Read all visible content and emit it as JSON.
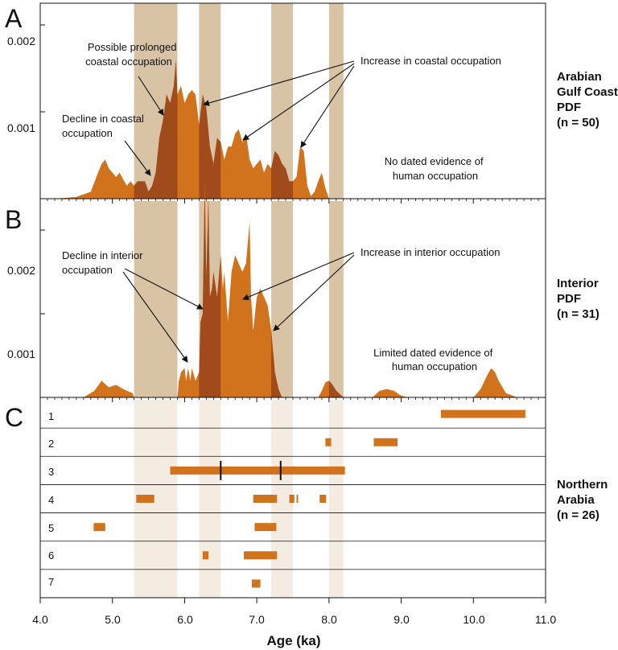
{
  "colors": {
    "orange": "#d1721d",
    "dark_orange": "#a14a1c",
    "band_tan": "#d8c3a5",
    "band_light": "#f4ece0",
    "axis": "#111111"
  },
  "x_axis": {
    "title": "Age (ka)",
    "range": [
      4.0,
      11.0
    ],
    "ticks": [
      "4.0",
      "5.0",
      "6.0",
      "7.0",
      "8.0",
      "9.0",
      "10.0",
      "11.0"
    ]
  },
  "aridity_bands": [
    [
      5.3,
      5.9
    ],
    [
      6.2,
      6.5
    ],
    [
      7.2,
      7.5
    ],
    [
      8.0,
      8.2
    ]
  ],
  "panels": {
    "A": {
      "letter": "A",
      "side_label": [
        "Arabian",
        "Gulf Coast",
        "PDF",
        "(n = 50)"
      ],
      "y_ticks": [
        "0.002",
        "0.001"
      ],
      "annotations": {
        "prolonged": [
          "Possible prolonged",
          "coastal occupation"
        ],
        "decline": [
          "Decline in coastal",
          "occupation"
        ],
        "increase": [
          "Increase in coastal occupation"
        ],
        "no_evidence": [
          "No dated evidence of",
          "human occupation"
        ]
      }
    },
    "B": {
      "letter": "B",
      "side_label": [
        "Interior",
        "PDF",
        "(n = 31)"
      ],
      "y_ticks": [
        "0.002",
        "0.001"
      ],
      "annotations": {
        "decline": [
          "Decline in interior",
          "occupation"
        ],
        "increase": [
          "Increase in interior occupation"
        ],
        "limited": [
          "Limited dated evidence of",
          "human occupation"
        ]
      }
    },
    "C": {
      "letter": "C",
      "side_label": [
        "Northern",
        "Arabia",
        "(n = 26)"
      ],
      "rows": [
        "1",
        "2",
        "3",
        "4",
        "5",
        "6",
        "7"
      ]
    }
  },
  "chart_data": [
    {
      "type": "area",
      "panel": "A",
      "title": "",
      "series_label": "Arabian Gulf Coast PDF (n = 50)",
      "xlabel": "Age (ka)",
      "ylabel": "",
      "xlim": [
        4.0,
        11.0
      ],
      "ylim": [
        0,
        0.0024
      ],
      "x": [
        4.2,
        4.5,
        4.7,
        4.8,
        4.85,
        4.9,
        4.95,
        5.0,
        5.05,
        5.1,
        5.15,
        5.2,
        5.25,
        5.3,
        5.35,
        5.45,
        5.5,
        5.55,
        5.6,
        5.65,
        5.7,
        5.75,
        5.8,
        5.85,
        5.88,
        5.9,
        5.95,
        6.0,
        6.05,
        6.1,
        6.15,
        6.2,
        6.25,
        6.3,
        6.35,
        6.4,
        6.45,
        6.5,
        6.55,
        6.6,
        6.65,
        6.7,
        6.75,
        6.8,
        6.85,
        6.9,
        6.95,
        7.0,
        7.05,
        7.1,
        7.15,
        7.2,
        7.25,
        7.3,
        7.35,
        7.4,
        7.45,
        7.5,
        7.55,
        7.6,
        7.65,
        7.7,
        7.75,
        7.8,
        7.85,
        7.9,
        7.95,
        8.0
      ],
      "y": [
        0.0,
        2e-05,
        8e-05,
        0.0003,
        0.0004,
        0.00045,
        0.00035,
        0.0003,
        0.00025,
        0.0003,
        0.00022,
        0.00015,
        0.0002,
        0.00015,
        0.0002,
        0.0002,
        8e-05,
        0.00015,
        0.0003,
        0.0007,
        0.0009,
        0.0012,
        0.0011,
        0.0013,
        0.0016,
        0.0012,
        0.0013,
        0.0011,
        0.0012,
        0.00125,
        0.0012,
        0.00085,
        0.0012,
        0.00105,
        0.0006,
        0.0004,
        0.0007,
        0.00065,
        0.00045,
        0.0006,
        0.0006,
        0.00075,
        0.0008,
        0.00065,
        0.00075,
        0.00045,
        0.00035,
        0.0004,
        0.00045,
        0.0003,
        0.0004,
        0.00035,
        0.00055,
        0.0005,
        0.0004,
        0.00035,
        0.0002,
        0.0002,
        0.00025,
        0.0006,
        0.00055,
        0.00015,
        3e-05,
        8e-05,
        0.0002,
        0.0003,
        0.00012,
        0.0
      ]
    },
    {
      "type": "area",
      "panel": "B",
      "title": "",
      "series_label": "Interior PDF (n = 31)",
      "xlabel": "Age (ka)",
      "ylabel": "",
      "xlim": [
        4.0,
        11.0
      ],
      "ylim": [
        0,
        0.0028
      ],
      "x": [
        4.0,
        4.6,
        4.75,
        4.85,
        4.95,
        5.05,
        5.15,
        5.2,
        5.28,
        5.3,
        5.9,
        5.92,
        5.95,
        6.0,
        6.02,
        6.05,
        6.08,
        6.1,
        6.15,
        6.2,
        6.22,
        6.25,
        6.28,
        6.3,
        6.33,
        6.35,
        6.38,
        6.4,
        6.45,
        6.5,
        6.53,
        6.55,
        6.6,
        6.65,
        6.7,
        6.75,
        6.8,
        6.85,
        6.9,
        6.92,
        6.95,
        7.0,
        7.05,
        7.1,
        7.15,
        7.2,
        7.25,
        7.3,
        7.35,
        7.85,
        7.9,
        7.95,
        8.0,
        8.05,
        8.1,
        8.2,
        8.6,
        8.7,
        8.8,
        8.9,
        9.0,
        9.1,
        10.0,
        10.1,
        10.2,
        10.25,
        10.3,
        10.35,
        10.45,
        10.55,
        10.6,
        11.0
      ],
      "y": [
        0.0,
        0.0,
        8e-05,
        0.0002,
        0.00012,
        0.00015,
        0.0001,
        8e-05,
        5e-05,
        0.0,
        0.0,
        0.0002,
        0.0003,
        0.00035,
        0.0002,
        0.00035,
        0.0002,
        0.00035,
        0.0002,
        0.0003,
        0.0009,
        0.001,
        0.0026,
        0.0014,
        0.0024,
        0.0012,
        0.0013,
        0.0015,
        0.0012,
        0.0017,
        0.0013,
        0.0015,
        0.0009,
        0.0015,
        0.0017,
        0.0016,
        0.0015,
        0.0016,
        0.0021,
        0.0012,
        0.0008,
        0.0012,
        0.0013,
        0.0012,
        0.0011,
        0.0008,
        0.0003,
        0.0001,
        0.0,
        0.0,
        8e-05,
        0.00018,
        0.0002,
        0.00015,
        8e-05,
        0.0,
        0.0,
        8e-05,
        0.0001,
        8e-05,
        2e-05,
        0.0,
        0.0,
        0.0001,
        0.00028,
        0.00035,
        0.0003,
        0.0002,
        5e-05,
        2e-05,
        0.0,
        0.0
      ]
    },
    {
      "type": "range-bars",
      "panel": "C",
      "title": "",
      "series_label": "Northern Arabia (n = 26)",
      "xlabel": "Age (ka)",
      "xlim": [
        4.0,
        11.0
      ],
      "rows": [
        {
          "label": "1",
          "ranges": [
            [
              9.55,
              10.72
            ]
          ],
          "markers": []
        },
        {
          "label": "2",
          "ranges": [
            [
              7.95,
              8.03
            ],
            [
              8.62,
              8.95
            ]
          ],
          "markers": []
        },
        {
          "label": "3",
          "ranges": [
            [
              5.8,
              8.22
            ]
          ],
          "markers": [
            6.5,
            7.33
          ]
        },
        {
          "label": "4",
          "ranges": [
            [
              5.33,
              5.58
            ],
            [
              6.95,
              7.28
            ],
            [
              7.45,
              7.52
            ],
            [
              7.55,
              7.57
            ],
            [
              7.87,
              7.96
            ]
          ],
          "markers": []
        },
        {
          "label": "5",
          "ranges": [
            [
              4.74,
              4.9
            ],
            [
              6.97,
              7.27
            ]
          ],
          "markers": []
        },
        {
          "label": "6",
          "ranges": [
            [
              6.25,
              6.33
            ],
            [
              6.82,
              7.28
            ]
          ],
          "markers": []
        },
        {
          "label": "7",
          "ranges": [
            [
              6.93,
              7.05
            ]
          ],
          "markers": []
        }
      ]
    }
  ]
}
